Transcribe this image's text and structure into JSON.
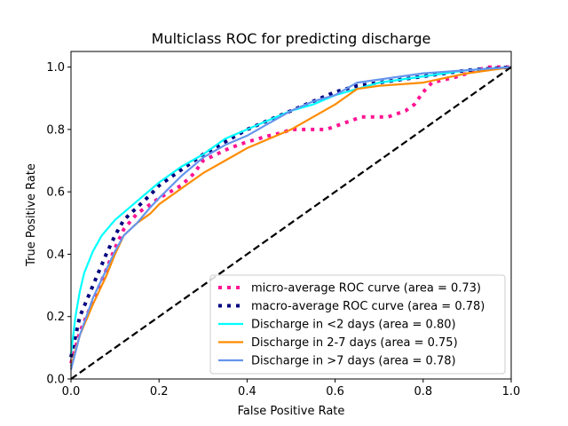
{
  "chart_data": {
    "type": "line",
    "title": "Multiclass ROC for predicting discharge",
    "xlabel": "False Positive Rate",
    "ylabel": "True Positive Rate",
    "xlim": [
      0,
      1
    ],
    "ylim": [
      0,
      1.05
    ],
    "xticks": [
      0.0,
      0.2,
      0.4,
      0.6,
      0.8,
      1.0
    ],
    "xtick_labels": [
      "0.0",
      "0.2",
      "0.4",
      "0.6",
      "0.8",
      "1.0"
    ],
    "yticks": [
      0.0,
      0.2,
      0.4,
      0.6,
      0.8,
      1.0
    ],
    "ytick_labels": [
      "0.0",
      "0.2",
      "0.4",
      "0.6",
      "0.8",
      "1.0"
    ],
    "grid": false,
    "legend_position": "lower-right",
    "series": [
      {
        "name": "micro-average ROC curve (area = 0.73)",
        "color": "#ff1493",
        "style": "dotted",
        "x": [
          0,
          0.02,
          0.05,
          0.08,
          0.1,
          0.12,
          0.15,
          0.18,
          0.2,
          0.25,
          0.28,
          0.3,
          0.33,
          0.36,
          0.4,
          0.45,
          0.48,
          0.5,
          0.53,
          0.55,
          0.58,
          0.6,
          0.62,
          0.64,
          0.66,
          0.68,
          0.7,
          0.72,
          0.74,
          0.76,
          0.78,
          0.8,
          0.82,
          0.85,
          0.88,
          0.9,
          0.92,
          0.95,
          0.97,
          1.0
        ],
        "y": [
          0.05,
          0.15,
          0.25,
          0.35,
          0.42,
          0.48,
          0.53,
          0.56,
          0.58,
          0.62,
          0.66,
          0.7,
          0.72,
          0.74,
          0.76,
          0.78,
          0.79,
          0.8,
          0.8,
          0.8,
          0.8,
          0.81,
          0.82,
          0.83,
          0.84,
          0.84,
          0.84,
          0.84,
          0.85,
          0.86,
          0.88,
          0.92,
          0.95,
          0.96,
          0.97,
          0.98,
          0.99,
          1.0,
          1.0,
          1.0
        ]
      },
      {
        "name": "macro-average ROC curve (area = 0.78)",
        "color": "#000080",
        "style": "dotted",
        "x": [
          0,
          0.02,
          0.05,
          0.08,
          0.1,
          0.12,
          0.15,
          0.18,
          0.2,
          0.25,
          0.3,
          0.35,
          0.4,
          0.45,
          0.5,
          0.55,
          0.6,
          0.65,
          0.7,
          0.8,
          0.9,
          1.0
        ],
        "y": [
          0.07,
          0.2,
          0.3,
          0.4,
          0.46,
          0.51,
          0.55,
          0.59,
          0.62,
          0.67,
          0.72,
          0.76,
          0.8,
          0.83,
          0.86,
          0.89,
          0.92,
          0.94,
          0.95,
          0.97,
          0.99,
          1.0
        ]
      },
      {
        "name": "Discharge in <2 days (area = 0.80)",
        "color": "#00ffff",
        "style": "solid",
        "x": [
          0,
          0.01,
          0.02,
          0.03,
          0.05,
          0.07,
          0.1,
          0.15,
          0.2,
          0.25,
          0.3,
          0.35,
          0.4,
          0.45,
          0.5,
          0.55,
          0.6,
          0.65,
          0.7,
          0.8,
          0.9,
          1.0
        ],
        "y": [
          0.08,
          0.2,
          0.28,
          0.34,
          0.41,
          0.46,
          0.51,
          0.57,
          0.63,
          0.68,
          0.72,
          0.77,
          0.8,
          0.83,
          0.86,
          0.88,
          0.91,
          0.93,
          0.95,
          0.97,
          0.99,
          1.0
        ]
      },
      {
        "name": "Discharge in 2-7 days (area = 0.75)",
        "color": "#ff8c00",
        "style": "solid",
        "x": [
          0,
          0.02,
          0.05,
          0.08,
          0.1,
          0.12,
          0.15,
          0.18,
          0.2,
          0.25,
          0.3,
          0.35,
          0.4,
          0.45,
          0.5,
          0.55,
          0.6,
          0.65,
          0.7,
          0.8,
          0.9,
          1.0
        ],
        "y": [
          0.04,
          0.14,
          0.24,
          0.33,
          0.4,
          0.46,
          0.5,
          0.53,
          0.56,
          0.61,
          0.66,
          0.7,
          0.74,
          0.77,
          0.8,
          0.84,
          0.88,
          0.93,
          0.94,
          0.95,
          0.98,
          1.0
        ]
      },
      {
        "name": "Discharge in >7 days (area = 0.78)",
        "color": "#6495ed",
        "style": "solid",
        "x": [
          0,
          0.02,
          0.05,
          0.08,
          0.1,
          0.12,
          0.15,
          0.18,
          0.2,
          0.25,
          0.3,
          0.35,
          0.4,
          0.45,
          0.5,
          0.55,
          0.6,
          0.65,
          0.7,
          0.75,
          0.8,
          0.9,
          1.0
        ],
        "y": [
          0.03,
          0.14,
          0.26,
          0.35,
          0.41,
          0.46,
          0.5,
          0.55,
          0.58,
          0.65,
          0.71,
          0.75,
          0.78,
          0.82,
          0.86,
          0.89,
          0.91,
          0.95,
          0.96,
          0.97,
          0.98,
          0.99,
          1.0
        ]
      },
      {
        "name": "",
        "color": "#000000",
        "style": "dashed",
        "x": [
          0,
          1
        ],
        "y": [
          0,
          1
        ]
      }
    ]
  }
}
